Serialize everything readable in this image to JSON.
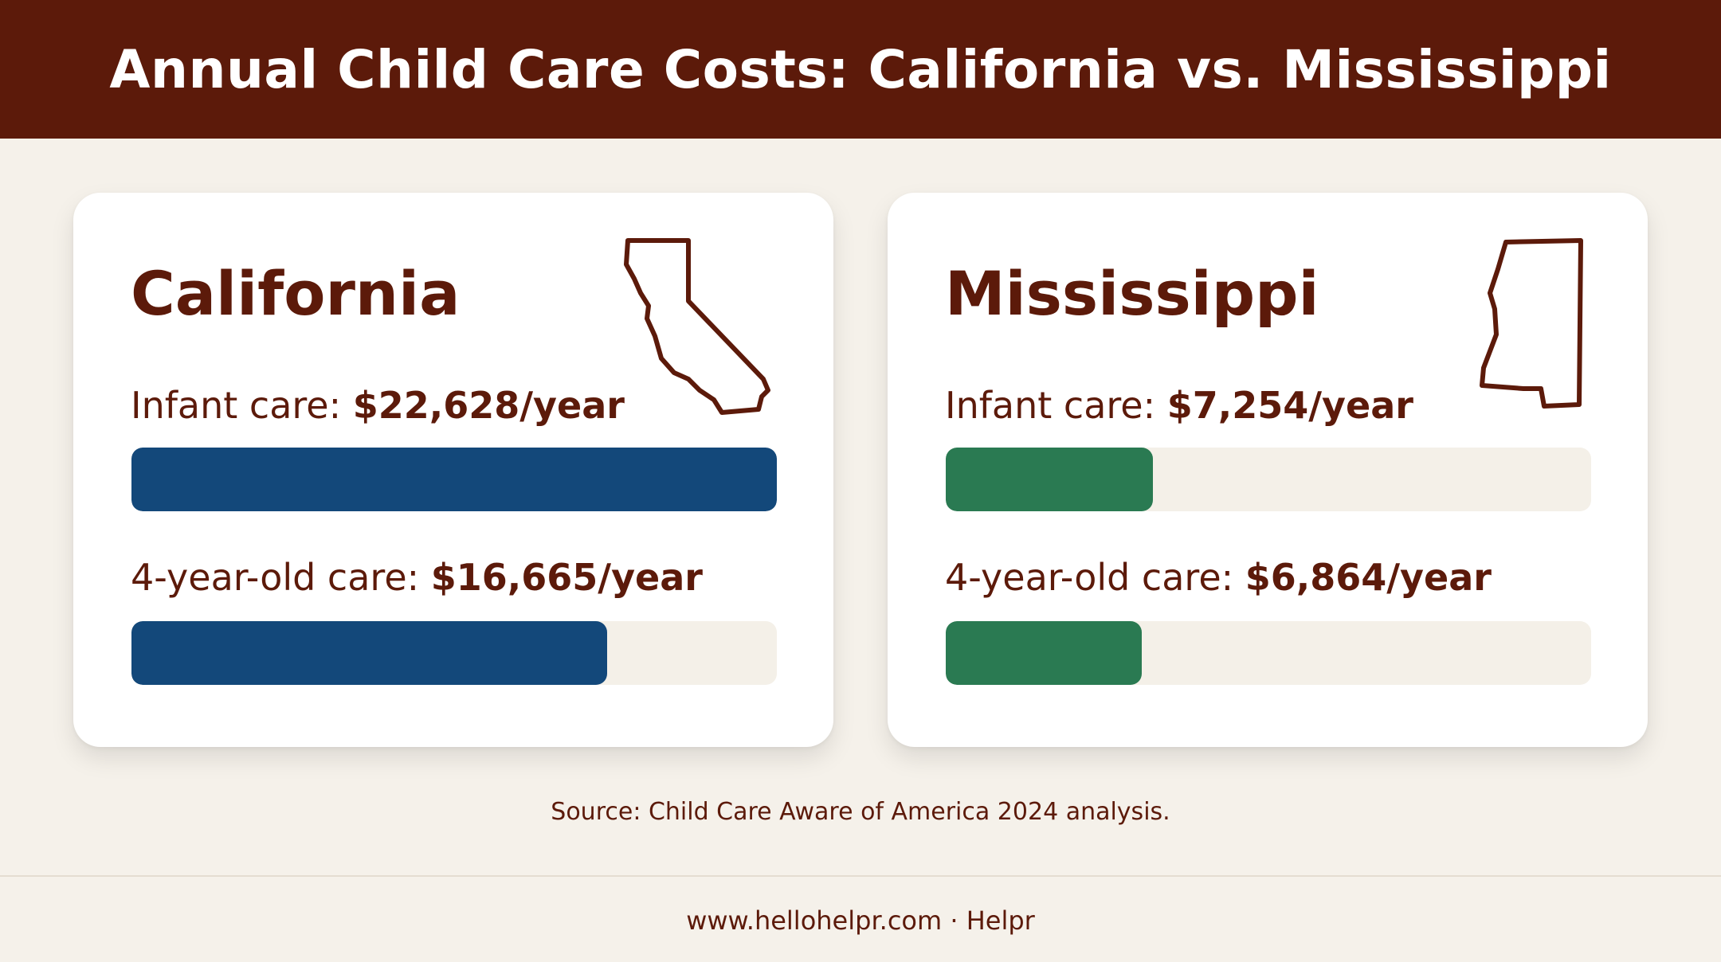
{
  "title": "Annual Child Care Costs: California vs. Mississippi",
  "colors": {
    "header_bg": "#5c1a0a",
    "text": "#5c1a0a",
    "california": "#13487a",
    "mississippi": "#2a7a52",
    "track": "#f4f0e8",
    "background": "#f5f1ea"
  },
  "icons": {
    "california": "california-outline-icon",
    "mississippi": "mississippi-outline-icon"
  },
  "chart_data": {
    "type": "bar",
    "orientation": "horizontal",
    "title": "Annual Child Care Costs: California vs. Mississippi",
    "unit": "$/year",
    "scale_max": 22628,
    "panels": [
      {
        "name": "California",
        "color": "#13487a",
        "bars": [
          {
            "prefix": "Infant care: ",
            "value_text": "$22,628/year",
            "value": 22628
          },
          {
            "prefix": "4-year-old care: ",
            "value_text": "$16,665/year",
            "value": 16665
          }
        ]
      },
      {
        "name": "Mississippi",
        "color": "#2a7a52",
        "bars": [
          {
            "prefix": "Infant care: ",
            "value_text": "$7,254/year",
            "value": 7254
          },
          {
            "prefix": "4-year-old care: ",
            "value_text": "$6,864/year",
            "value": 6864
          }
        ]
      }
    ]
  },
  "source": "Source: Child Care Aware of America 2024 analysis.",
  "footer": {
    "text": "www.hellohelpr.com · Helpr"
  }
}
